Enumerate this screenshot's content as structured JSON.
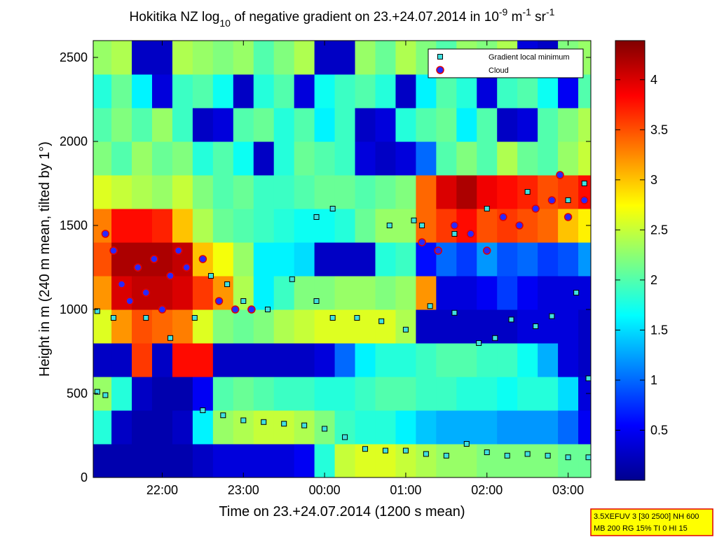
{
  "chart_data": {
    "type": "heatmap",
    "title": [
      "Hokitika NZ log",
      "10",
      " of negative gradient on 23.+24.07.2014 in 10",
      "-9",
      " m",
      "-1",
      " sr",
      "-1"
    ],
    "title_shift": [
      "base",
      "sub",
      "base",
      "super",
      "base",
      "super",
      "base",
      "super"
    ],
    "xlabel": "Time on 23.+24.07.2014 (1200 s mean)",
    "ylabel": "Height in m (240 m mean, tilted by 1°)",
    "xlim": [
      21.15,
      27.28
    ],
    "xticks": [
      {
        "value": 22,
        "label": "22:00"
      },
      {
        "value": 23,
        "label": "23:00"
      },
      {
        "value": 24,
        "label": "00:00"
      },
      {
        "value": 25,
        "label": "01:00"
      },
      {
        "value": 26,
        "label": "02:00"
      },
      {
        "value": 27,
        "label": "03:00"
      }
    ],
    "ylim": [
      0,
      2600
    ],
    "yticks": [
      0,
      500,
      1000,
      1500,
      2000,
      2500
    ],
    "clim": [
      0,
      4.39
    ],
    "cticks": [
      0.5,
      1,
      1.5,
      2,
      2.5,
      3,
      3.5,
      4
    ],
    "colormap": "jet",
    "heatmap": {
      "x": [
        21.25,
        21.5,
        21.75,
        22,
        22.25,
        22.5,
        22.75,
        23,
        23.25,
        23.5,
        23.75,
        24,
        24.25,
        24.5,
        24.75,
        25,
        25.25,
        25.5,
        25.75,
        26,
        26.25,
        26.5,
        26.75,
        27,
        27.25
      ],
      "y": [
        100,
        300,
        500,
        700,
        900,
        1100,
        1300,
        1500,
        1700,
        1900,
        2100,
        2300,
        2500
      ],
      "z": [
        [
          0.2,
          0.2,
          0.2,
          0.2,
          0.2,
          0.3,
          0.4,
          0.4,
          0.4,
          0.4,
          0.5,
          1.8,
          2.5,
          2.6,
          2.6,
          2.5,
          2.4,
          2.3,
          2.3,
          2.2,
          2.2,
          2.2,
          2.2,
          2.1,
          2.1
        ],
        [
          1.8,
          0.3,
          0.2,
          0.2,
          0.3,
          1.6,
          2.3,
          2.4,
          2.5,
          2.5,
          2.4,
          2.2,
          1.9,
          1.8,
          1.8,
          1.6,
          1.4,
          1.3,
          1.3,
          1.3,
          1.2,
          1.2,
          1.2,
          1.0,
          0.5
        ],
        [
          2.3,
          1.8,
          0.3,
          0.2,
          0.2,
          0.5,
          2.0,
          2.1,
          2.0,
          1.9,
          1.9,
          1.8,
          1.8,
          1.9,
          2.0,
          2.0,
          1.9,
          1.9,
          1.8,
          1.8,
          1.7,
          1.8,
          1.8,
          1.5,
          0.4
        ],
        [
          0.3,
          0.3,
          3.6,
          0.3,
          3.8,
          3.8,
          0.3,
          0.3,
          0.3,
          0.3,
          0.3,
          0.4,
          1.0,
          1.6,
          1.8,
          1.8,
          1.9,
          2.0,
          2.0,
          1.9,
          1.9,
          1.7,
          1.3,
          0.4,
          0.3
        ],
        [
          2.6,
          3.2,
          3.5,
          3.4,
          3.3,
          2.6,
          2.2,
          2.1,
          2.2,
          2.4,
          2.5,
          2.6,
          2.6,
          2.6,
          2.6,
          2.4,
          0.3,
          0.3,
          0.3,
          0.3,
          0.3,
          0.4,
          0.4,
          0.4,
          0.3
        ],
        [
          3.2,
          4.0,
          4.1,
          4.1,
          4.0,
          3.6,
          3.2,
          2.4,
          1.6,
          1.9,
          2.2,
          2.2,
          2.3,
          2.3,
          2.2,
          2.3,
          3.2,
          0.4,
          0.4,
          0.5,
          0.8,
          0.5,
          0.4,
          0.4,
          0.4
        ],
        [
          3.5,
          4.2,
          4.2,
          4.2,
          4.1,
          3.0,
          2.7,
          2.3,
          1.6,
          1.6,
          1.5,
          0.3,
          0.3,
          0.3,
          1.8,
          1.9,
          0.6,
          1.0,
          0.8,
          1.2,
          0.9,
          1.0,
          0.8,
          0.9,
          1.2
        ],
        [
          3.3,
          3.8,
          3.8,
          3.7,
          3.0,
          2.4,
          2.1,
          2.0,
          1.9,
          1.8,
          1.7,
          1.7,
          1.8,
          2.1,
          2.3,
          2.3,
          3.4,
          3.6,
          3.8,
          3.5,
          3.6,
          3.5,
          3.4,
          3.0,
          2.8
        ],
        [
          2.6,
          2.5,
          2.4,
          2.3,
          2.5,
          2.2,
          2.0,
          2.1,
          1.9,
          1.9,
          2.0,
          2.1,
          2.1,
          2.0,
          2.1,
          2.2,
          3.4,
          4.0,
          4.2,
          3.9,
          3.8,
          3.7,
          3.5,
          3.6,
          3.8
        ],
        [
          2.2,
          2.0,
          2.3,
          2.1,
          2.2,
          1.8,
          2.0,
          1.7,
          0.3,
          1.8,
          2.1,
          2.0,
          1.9,
          0.4,
          0.3,
          0.4,
          1.0,
          2.0,
          2.2,
          2.0,
          2.4,
          2.1,
          2.0,
          2.3,
          2.5
        ],
        [
          2.0,
          2.2,
          2.0,
          2.3,
          1.9,
          0.3,
          0.4,
          2.0,
          2.1,
          1.8,
          2.0,
          1.6,
          1.9,
          0.3,
          0.4,
          1.8,
          2.0,
          2.1,
          1.6,
          2.0,
          0.3,
          0.4,
          2.0,
          2.2,
          2.4
        ],
        [
          1.8,
          2.1,
          1.6,
          0.4,
          1.9,
          2.0,
          1.7,
          0.3,
          1.8,
          2.0,
          0.4,
          1.7,
          1.9,
          2.0,
          1.8,
          0.3,
          1.6,
          2.0,
          1.8,
          0.4,
          1.9,
          2.0,
          1.7,
          0.5,
          2.0
        ],
        [
          2.3,
          2.4,
          0.3,
          0.3,
          2.4,
          2.3,
          2.2,
          2.3,
          2.0,
          2.2,
          2.4,
          0.3,
          0.3,
          2.3,
          2.1,
          2.4,
          2.2,
          2.0,
          2.3,
          2.2,
          2.4,
          0.4,
          0.3,
          2.2,
          2.3
        ]
      ]
    },
    "series": [
      {
        "name": "Gradient local minimum",
        "marker": "square",
        "color": "#40e0e0",
        "edge": "#000000",
        "x": [
          22.5,
          22.75,
          23,
          23.25,
          23.5,
          23.75,
          24,
          24.25,
          24.5,
          24.75,
          25,
          25.25,
          25.5,
          25.75,
          26,
          26.25,
          26.5,
          26.75,
          27,
          27.25,
          21.2,
          21.4,
          21.8,
          22.1,
          22.4,
          22.6,
          22.8,
          23,
          23.3,
          23.6,
          23.9,
          24.1,
          24.4,
          24.7,
          25,
          25.3,
          25.6,
          25.9,
          26.1,
          26.3,
          26.6,
          26.8,
          27.1,
          27.25,
          21.2,
          21.3,
          25.2,
          25.6,
          26,
          26.5,
          27,
          27.2,
          24.8,
          25.1,
          23.9,
          24.1
        ],
        "y": [
          400,
          370,
          340,
          330,
          320,
          310,
          290,
          240,
          170,
          160,
          160,
          140,
          130,
          200,
          150,
          130,
          140,
          130,
          120,
          120,
          990,
          950,
          950,
          830,
          950,
          1200,
          1150,
          1050,
          1000,
          1180,
          1050,
          950,
          950,
          930,
          880,
          1020,
          980,
          800,
          830,
          940,
          900,
          960,
          1100,
          590,
          510,
          490,
          1500,
          1450,
          1600,
          1700,
          1650,
          1750,
          1500,
          1530,
          1550,
          1600
        ]
      },
      {
        "name": "Cloud",
        "marker": "circle",
        "color": "#2828ff",
        "edge": "#e00000",
        "x": [
          21.3,
          21.4,
          21.5,
          21.6,
          21.7,
          21.8,
          21.9,
          22,
          22.1,
          22.2,
          22.3,
          22.5,
          22.7,
          22.9,
          23.1,
          25.2,
          25.4,
          25.6,
          25.8,
          26,
          26.2,
          26.4,
          26.6,
          26.8,
          27,
          27.2,
          26.9
        ],
        "y": [
          1450,
          1350,
          1150,
          1050,
          1250,
          1100,
          1300,
          1000,
          1200,
          1350,
          1250,
          1300,
          1050,
          1000,
          1000,
          1400,
          1350,
          1500,
          1450,
          1350,
          1550,
          1500,
          1600,
          1650,
          1550,
          1650,
          1800
        ]
      }
    ],
    "annotation": [
      "3.5XEFUV 3 [30 2500] NH 600",
      "MB 200 RG 15% TI 0 HI 15"
    ]
  }
}
